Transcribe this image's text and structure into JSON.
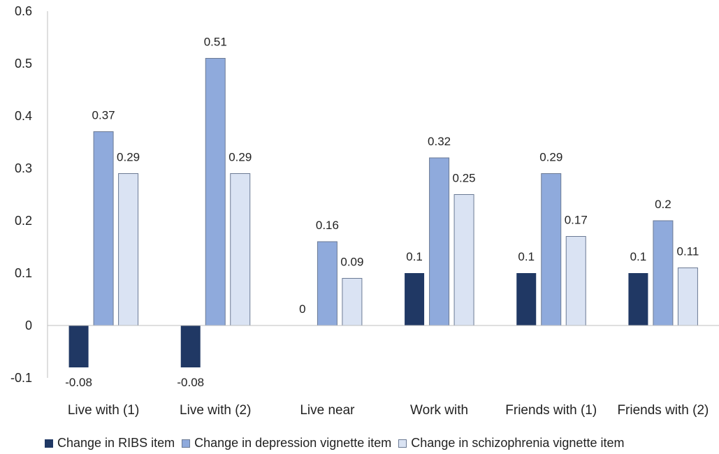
{
  "chart_data": {
    "type": "bar",
    "categories": [
      "Live with (1)",
      "Live with (2)",
      "Live near",
      "Work with",
      "Friends with (1)",
      "Friends with (2)"
    ],
    "series": [
      {
        "name": "Change in RIBS item",
        "values": [
          -0.08,
          -0.08,
          0,
          0.1,
          0.1,
          0.1
        ],
        "labels": [
          "-0.08",
          "-0.08",
          "0",
          "0.1",
          "0.1",
          "0.1"
        ],
        "color": "#203864"
      },
      {
        "name": "Change in depression vignette item",
        "values": [
          0.37,
          0.51,
          0.16,
          0.32,
          0.29,
          0.2
        ],
        "labels": [
          "0.37",
          "0.51",
          "0.16",
          "0.32",
          "0.29",
          "0.2"
        ],
        "color": "#8faadc"
      },
      {
        "name": "Change in schizophrenia vignette item",
        "values": [
          0.29,
          0.29,
          0.09,
          0.25,
          0.17,
          0.11
        ],
        "labels": [
          "0.29",
          "0.29",
          "0.09",
          "0.25",
          "0.17",
          "0.11"
        ],
        "color": "#dae3f3"
      }
    ],
    "yticks": [
      "-0.1",
      "0",
      "0.1",
      "0.2",
      "0.3",
      "0.4",
      "0.5",
      "0.6"
    ],
    "ylim": [
      -0.1,
      0.6
    ],
    "legend_position": "bottom",
    "grid": false
  }
}
